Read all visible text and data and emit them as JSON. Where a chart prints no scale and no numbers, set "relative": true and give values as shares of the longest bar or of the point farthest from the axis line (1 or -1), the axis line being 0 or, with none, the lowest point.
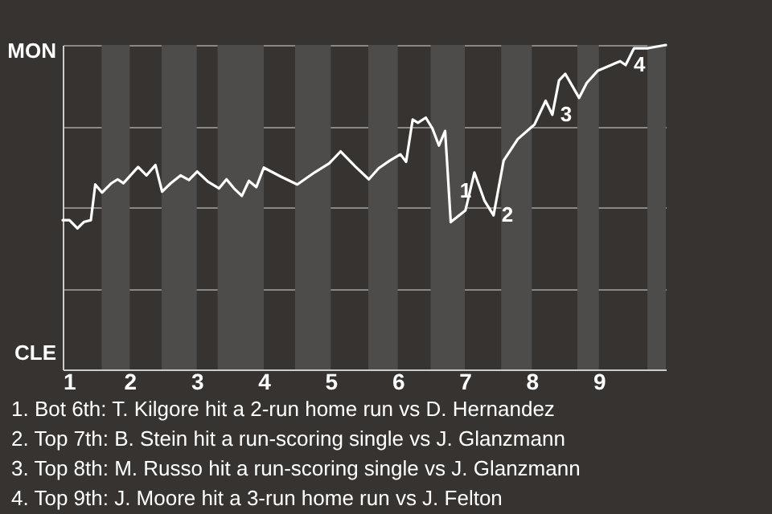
{
  "chart_data": {
    "type": "line",
    "relative": true,
    "x": [
      1,
      1.1,
      1.22,
      1.32,
      1.42,
      1.486,
      1.586,
      1.72,
      1.82,
      1.906,
      2.125,
      2.25,
      2.383,
      2.483,
      2.608,
      2.758,
      2.883,
      3.007,
      3.171,
      3.333,
      3.444,
      3.556,
      3.673,
      3.778,
      3.889,
      4,
      4.257,
      4.5,
      4.757,
      4.977,
      5.147,
      5.373,
      5.568,
      5.715,
      5.882,
      6.039,
      6.124,
      6.222,
      6.3,
      6.418,
      6.516,
      6.614,
      6.706,
      6.739,
      6.79,
      6.888,
      7.009,
      7.143,
      7.294,
      7.429,
      7.58,
      7.791,
      8.04,
      8.206,
      8.306,
      8.406,
      8.5,
      8.706,
      8.82,
      8.986,
      9.318,
      9.4,
      9.525,
      9.733,
      10
    ],
    "series": [
      {
        "color": "#ffffff",
        "values": [
          0.46,
          0.46,
          0.435,
          0.455,
          0.46,
          0.57,
          0.545,
          0.573,
          0.586,
          0.574,
          0.624,
          0.598,
          0.63,
          0.548,
          0.573,
          0.598,
          0.584,
          0.61,
          0.578,
          0.558,
          0.586,
          0.558,
          0.535,
          0.581,
          0.562,
          0.622,
          0.594,
          0.57,
          0.607,
          0.635,
          0.672,
          0.624,
          0.586,
          0.62,
          0.644,
          0.663,
          0.64,
          0.77,
          0.76,
          0.776,
          0.743,
          0.69,
          0.735,
          0.627,
          0.454,
          0.47,
          0.49,
          0.607,
          0.52,
          0.475,
          0.644,
          0.71,
          0.755,
          0.828,
          0.785,
          0.891,
          0.911,
          0.837,
          0.883,
          0.921,
          0.95,
          0.938,
          0.99,
          0.99,
          1
        ]
      }
    ],
    "xlim": [
      1,
      10
    ],
    "xticks": [
      1,
      2,
      3,
      4,
      5,
      6,
      7,
      8,
      9
    ],
    "tick_labels": "x",
    "grid": "y",
    "marker": "none",
    "line_style": "solid",
    "bands": [
      {
        "axis": "x",
        "from": 1.58,
        "to": 2,
        "color": "#4d4c4a"
      },
      {
        "axis": "x",
        "from": 2.475,
        "to": 3,
        "color": "#4d4c4a"
      },
      {
        "axis": "x",
        "from": 3.311,
        "to": 4,
        "color": "#4d4c4a"
      },
      {
        "axis": "x",
        "from": 4.467,
        "to": 5,
        "color": "#4d4c4a"
      },
      {
        "axis": "x",
        "from": 5.559,
        "to": 6,
        "color": "#4d4c4a"
      },
      {
        "axis": "x",
        "from": 6.49,
        "to": 7,
        "color": "#4d4c4a"
      },
      {
        "axis": "x",
        "from": 7.543,
        "to": 8,
        "color": "#4d4c4a"
      },
      {
        "axis": "x",
        "from": 8.68,
        "to": 9,
        "color": "#4d4c4a"
      },
      {
        "axis": "x",
        "from": 9.725,
        "to": 10,
        "color": "#4d4c4a"
      }
    ],
    "annotations": [
      {
        "text": "1",
        "x": 6.804,
        "y": 0.55
      },
      {
        "text": "2",
        "x": 7.429,
        "y": 0.475
      },
      {
        "text": "3",
        "x": 8.306,
        "y": 0.785
      },
      {
        "text": "4",
        "x": 9.4,
        "y": 0.938
      },
      "MON",
      "CLE",
      "1. Bot 6th: T. Kilgore hit a 2-run home run vs D. Hernandez",
      "2. Top 7th: B. Stein hit a run-scoring single vs J. Glanzmann",
      "3. Top 8th: M. Russo hit a run-scoring single vs J. Glanzmann",
      "4. Top 9th: J. Moore hit a 3-run home run vs J. Felton"
    ]
  }
}
